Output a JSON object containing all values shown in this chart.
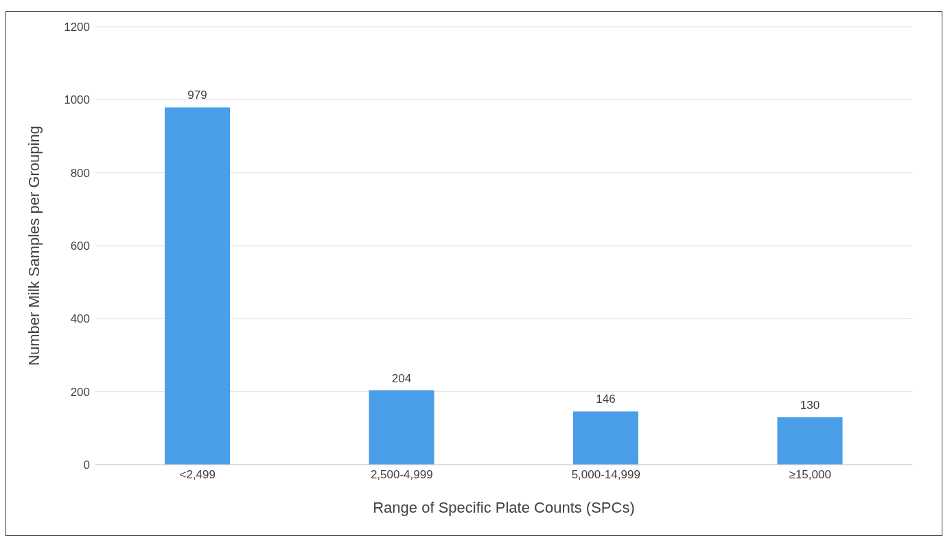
{
  "chart_data": {
    "type": "bar",
    "xlabel": "Range of Specific Plate Counts (SPCs)",
    "ylabel": "Number Milk Samples per Grouping",
    "categories": [
      "<2,499",
      "2,500-4,999",
      "5,000-14,999",
      "≥15,000"
    ],
    "values": [
      979,
      204,
      146,
      130
    ],
    "color": "#4a9fe8",
    "ylim": [
      0,
      1200
    ],
    "yticks": [
      0,
      200,
      400,
      600,
      800,
      1000,
      1200
    ],
    "grid": "y",
    "data_labels": true
  }
}
